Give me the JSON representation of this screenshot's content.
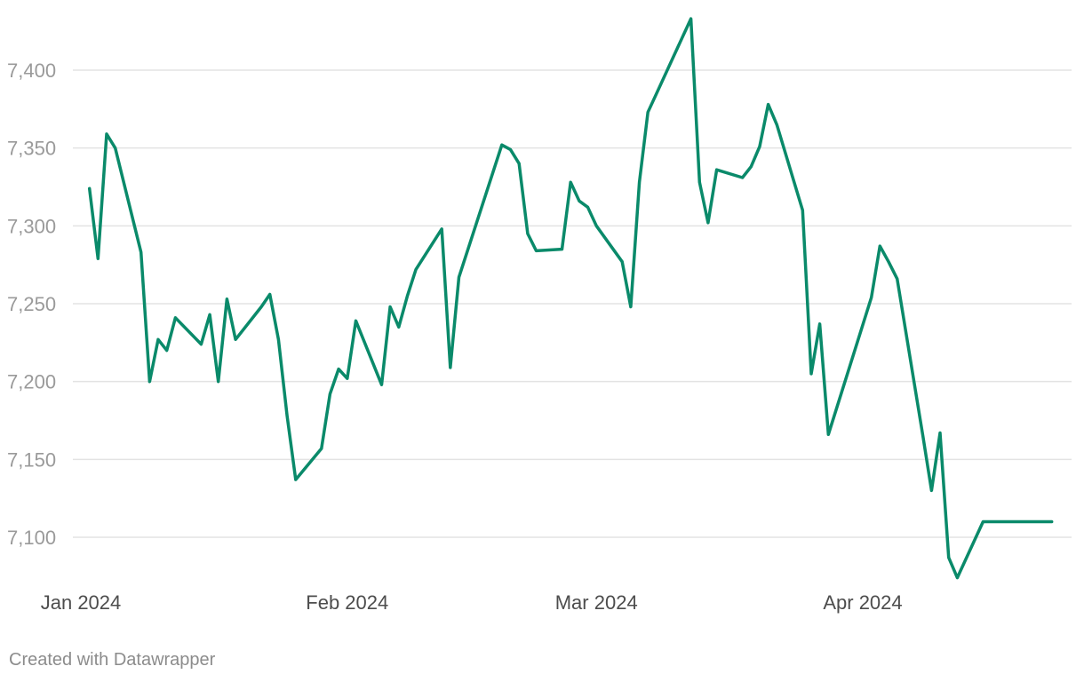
{
  "chart_data": {
    "type": "line",
    "title": "",
    "xlabel": "",
    "ylabel": "",
    "ylim": [
      7070,
      7440
    ],
    "yticks": [
      7100,
      7150,
      7200,
      7250,
      7300,
      7350,
      7400
    ],
    "ytick_labels": [
      "7,100",
      "7,150",
      "7,200",
      "7,250",
      "7,300",
      "7,350",
      "7,400"
    ],
    "xlim": [
      "2023-12-31",
      "2024-04-25"
    ],
    "xticks": [
      "2024-01-01",
      "2024-02-01",
      "2024-03-01",
      "2024-04-01"
    ],
    "xtick_labels": [
      "Jan 2024",
      "Feb 2024",
      "Mar 2024",
      "Apr 2024"
    ],
    "grid": true,
    "series": [
      {
        "color": "#0a8a6a",
        "x": [
          "2024-01-02",
          "2024-01-03",
          "2024-01-04",
          "2024-01-05",
          "2024-01-08",
          "2024-01-09",
          "2024-01-10",
          "2024-01-11",
          "2024-01-12",
          "2024-01-15",
          "2024-01-16",
          "2024-01-17",
          "2024-01-18",
          "2024-01-19",
          "2024-01-22",
          "2024-01-23",
          "2024-01-24",
          "2024-01-25",
          "2024-01-26",
          "2024-01-29",
          "2024-01-30",
          "2024-01-31",
          "2024-02-01",
          "2024-02-02",
          "2024-02-05",
          "2024-02-06",
          "2024-02-07",
          "2024-02-08",
          "2024-02-09",
          "2024-02-12",
          "2024-02-13",
          "2024-02-14",
          "2024-02-19",
          "2024-02-20",
          "2024-02-21",
          "2024-02-22",
          "2024-02-23",
          "2024-02-26",
          "2024-02-27",
          "2024-02-28",
          "2024-02-29",
          "2024-03-01",
          "2024-03-04",
          "2024-03-05",
          "2024-03-06",
          "2024-03-07",
          "2024-03-08",
          "2024-03-11",
          "2024-03-12",
          "2024-03-13",
          "2024-03-14",
          "2024-03-15",
          "2024-03-18",
          "2024-03-19",
          "2024-03-20",
          "2024-03-21",
          "2024-03-22",
          "2024-03-25",
          "2024-03-26",
          "2024-03-27",
          "2024-03-28",
          "2024-04-02",
          "2024-04-03",
          "2024-04-04",
          "2024-04-05",
          "2024-04-08",
          "2024-04-09",
          "2024-04-10",
          "2024-04-11",
          "2024-04-12",
          "2024-04-15",
          "2024-04-16",
          "2024-04-17",
          "2024-04-18",
          "2024-04-19",
          "2024-04-22",
          "2024-04-23",
          "2024-04-24"
        ],
        "values": [
          7324,
          7279,
          7359,
          7350,
          7283,
          7200,
          7227,
          7220,
          7241,
          7224,
          7243,
          7200,
          7253,
          7227,
          7248,
          7256,
          7227,
          7178,
          7137,
          7157,
          7192,
          7208,
          7202,
          7239,
          7198,
          7248,
          7235,
          7255,
          7272,
          7298,
          7209,
          7267,
          7352,
          7349,
          7340,
          7295,
          7284,
          7285,
          7328,
          7316,
          7312,
          7300,
          7277,
          7248,
          7328,
          7373,
          7385,
          7421,
          7433,
          7328,
          7302,
          7336,
          7331,
          7338,
          7351,
          7378,
          7365,
          7310,
          7205,
          7237,
          7166,
          7254,
          7287,
          7277,
          7266,
          7165,
          7130,
          7167,
          7087,
          7074,
          7110,
          7110,
          7110,
          7110,
          7110,
          7110,
          7110,
          7110
        ]
      }
    ]
  },
  "footer": {
    "credit": "Created with Datawrapper"
  }
}
